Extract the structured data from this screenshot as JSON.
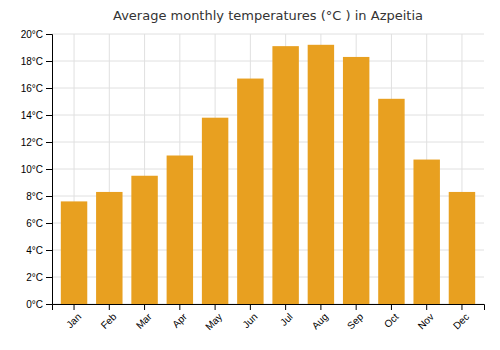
{
  "chart_data": {
    "type": "bar",
    "title": "Average monthly temperatures (°C ) in Azpeitia",
    "categories": [
      "Jan",
      "Feb",
      "Mar",
      "Apr",
      "May",
      "Jun",
      "Jul",
      "Aug",
      "Sep",
      "Oct",
      "Nov",
      "Dec"
    ],
    "values": [
      7.6,
      8.3,
      9.5,
      11.0,
      13.8,
      16.7,
      19.1,
      19.2,
      18.3,
      15.2,
      10.7,
      8.3
    ],
    "color": "#E8A020",
    "ylim": [
      0,
      20
    ],
    "yticks": [
      {
        "value": 0,
        "label": "0°C"
      },
      {
        "value": 2,
        "label": "2°C"
      },
      {
        "value": 4,
        "label": "4°C"
      },
      {
        "value": 6,
        "label": "6°C"
      },
      {
        "value": 8,
        "label": "8°C"
      },
      {
        "value": 10,
        "label": "10°C"
      },
      {
        "value": 12,
        "label": "12°C"
      },
      {
        "value": 14,
        "label": "14°C"
      },
      {
        "value": 16,
        "label": "16°C"
      },
      {
        "value": 18,
        "label": "18°C"
      },
      {
        "value": 20,
        "label": "20°C"
      }
    ],
    "grid": true
  }
}
